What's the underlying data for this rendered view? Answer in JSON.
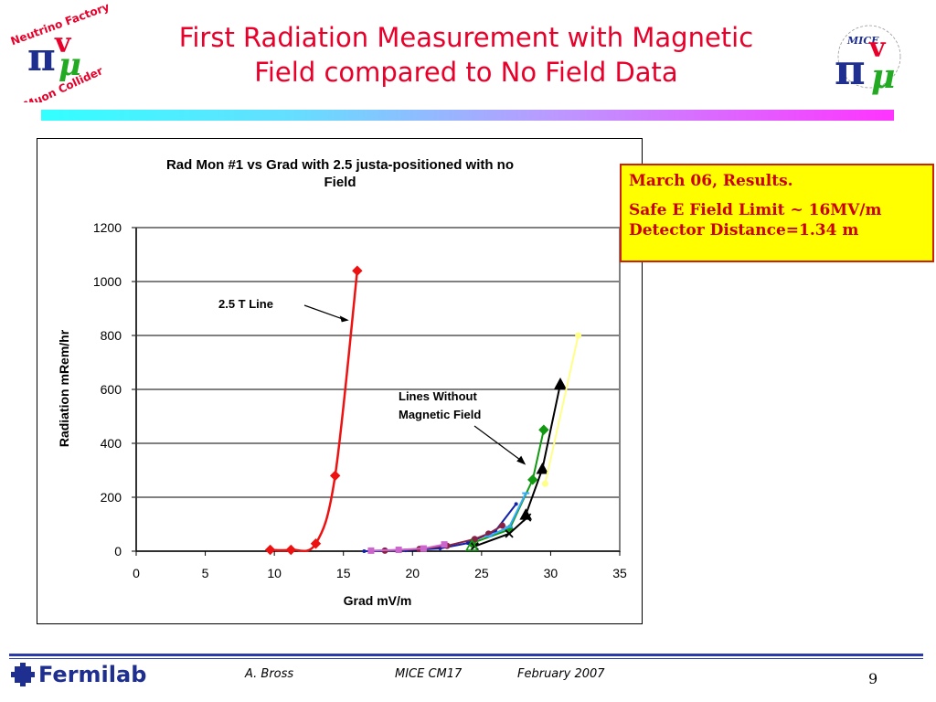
{
  "slide": {
    "title_line1": "First Radiation Measurement with Magnetic",
    "title_line2": "Field compared to No Field Data",
    "page_number": "9",
    "footer": {
      "author": "A. Bross",
      "event": "MICE CM17",
      "date": "February 2007",
      "lab": "Fermilab"
    },
    "logo_left": {
      "ring_top": "Neutrino Factory",
      "ring_bottom": "Muon Collider"
    },
    "logo_right": {
      "label": "MICE"
    },
    "callout": {
      "line1": "March 06, Results.",
      "line2": "Safe E Field Limit ~ 16MV/m",
      "line3": "Detector Distance=1.34 m"
    },
    "colors": {
      "title": "#e8002a",
      "callout_bg": "#ffff00",
      "callout_text": "#cc0000",
      "footer_blue": "#2a3ca8"
    }
  },
  "chart_data": {
    "type": "line",
    "title_line1": "Rad Mon #1 vs Grad with 2.5  justa-positioned with no",
    "title_line2": "Field",
    "xlabel": "Grad mV/m",
    "ylabel": "Radiation mRem/hr",
    "xlim": [
      0,
      35
    ],
    "ylim": [
      0,
      1200
    ],
    "xticks": [
      0,
      5,
      10,
      15,
      20,
      25,
      30,
      35
    ],
    "yticks": [
      0,
      200,
      400,
      600,
      800,
      1000,
      1200
    ],
    "grid": "horizontal",
    "annotations": [
      {
        "text": "2.5 T Line",
        "from": [
          12.5,
          920
        ],
        "to": [
          15.4,
          870
        ]
      },
      {
        "text_line1": "Lines Without",
        "text_line2": "Magnetic Field",
        "from": [
          21.5,
          440
        ],
        "to": [
          28.2,
          320
        ]
      }
    ],
    "series": [
      {
        "color": "#ee1111",
        "marker": "diamond",
        "smooth": true,
        "points": [
          [
            9.7,
            5
          ],
          [
            11.2,
            5
          ],
          [
            13.0,
            28
          ],
          [
            14.4,
            280
          ],
          [
            16.0,
            1040
          ]
        ]
      },
      {
        "color": "#119911",
        "marker": "diamond",
        "points": [
          [
            24.3,
            30
          ],
          [
            27.0,
            80
          ],
          [
            28.7,
            265
          ],
          [
            29.5,
            450
          ]
        ]
      },
      {
        "color": "#000000",
        "marker": "triangle",
        "points": [
          [
            28.2,
            135
          ],
          [
            29.4,
            305
          ],
          [
            30.7,
            620
          ]
        ]
      },
      {
        "color": "#ffff88",
        "marker": "circle",
        "points": [
          [
            29.6,
            250
          ],
          [
            32.0,
            800
          ]
        ]
      },
      {
        "color": "#1122aa",
        "marker": "dot",
        "points": [
          [
            16.5,
            0
          ],
          [
            19.5,
            3
          ],
          [
            22.0,
            10
          ],
          [
            24.0,
            30
          ],
          [
            26.0,
            75
          ],
          [
            27.5,
            175
          ]
        ]
      },
      {
        "color": "#882244",
        "marker": "circle",
        "points": [
          [
            18.0,
            2
          ],
          [
            20.5,
            8
          ],
          [
            22.5,
            20
          ],
          [
            24.5,
            45
          ],
          [
            25.5,
            65
          ],
          [
            26.5,
            95
          ]
        ]
      },
      {
        "color": "#cc66cc",
        "marker": "square",
        "points": [
          [
            17.0,
            2
          ],
          [
            19.0,
            5
          ],
          [
            20.8,
            10
          ],
          [
            22.3,
            25
          ]
        ]
      },
      {
        "color": "#33aaff",
        "marker": "dash",
        "points": [
          [
            25.5,
            55
          ],
          [
            27.0,
            90
          ],
          [
            28.2,
            215
          ]
        ]
      },
      {
        "color": "#000000",
        "marker": "x",
        "points": [
          [
            24.5,
            18
          ],
          [
            27.0,
            65
          ],
          [
            28.3,
            125
          ]
        ]
      },
      {
        "color": "#119911",
        "marker": "open-triangle",
        "points": [
          [
            24.3,
            20
          ]
        ]
      }
    ]
  }
}
